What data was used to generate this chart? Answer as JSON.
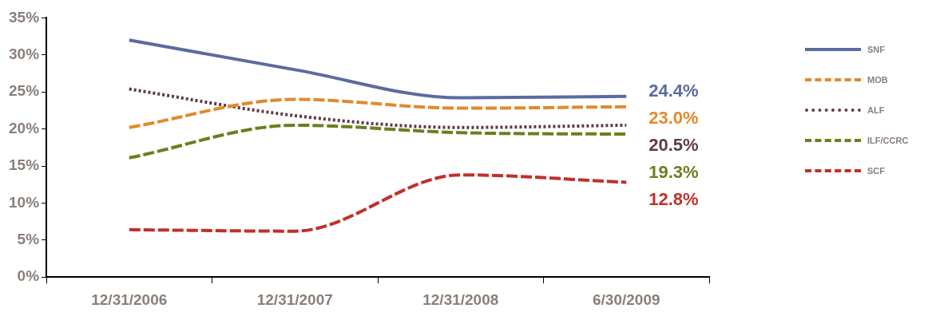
{
  "chart_data": {
    "type": "line",
    "categories": [
      "12/31/2006",
      "12/31/2007",
      "12/31/2008",
      "6/30/2009"
    ],
    "ylim": [
      0,
      35
    ],
    "yticks": [
      {
        "value": 0,
        "label": "0%"
      },
      {
        "value": 5,
        "label": "5%"
      },
      {
        "value": 10,
        "label": "10%"
      },
      {
        "value": 15,
        "label": "15%"
      },
      {
        "value": 20,
        "label": "20%"
      },
      {
        "value": 25,
        "label": "25%"
      },
      {
        "value": 30,
        "label": "30%"
      },
      {
        "value": 35,
        "label": "35%"
      }
    ],
    "grid": false,
    "legend": "right",
    "marker": "none",
    "series": [
      {
        "name": "SNF",
        "color": "#5a6b9e",
        "line_style": "solid",
        "values": [
          32.0,
          28.0,
          24.2,
          24.4
        ],
        "value_labels": [
          null,
          null,
          null,
          "24.4%"
        ]
      },
      {
        "name": "MOB",
        "color": "#e08a2c",
        "line_style": "dashed",
        "values": [
          20.2,
          24.0,
          22.8,
          23.0
        ],
        "value_labels": [
          null,
          null,
          null,
          "23.0%"
        ]
      },
      {
        "name": "ALF",
        "color": "#5e3a48",
        "line_style": "dotted",
        "values": [
          25.4,
          21.8,
          20.2,
          20.5
        ],
        "value_labels": [
          null,
          null,
          null,
          "20.5%"
        ]
      },
      {
        "name": "ILF/CCRC",
        "color": "#6b7f1e",
        "line_style": "dashed",
        "values": [
          16.1,
          20.5,
          19.5,
          19.3
        ],
        "value_labels": [
          null,
          null,
          null,
          "19.3%"
        ]
      },
      {
        "name": "SCF",
        "color": "#c0302a",
        "line_style": "dashed",
        "values": [
          6.4,
          6.2,
          13.8,
          12.8
        ],
        "value_labels": [
          null,
          null,
          null,
          "12.8%"
        ]
      }
    ]
  }
}
